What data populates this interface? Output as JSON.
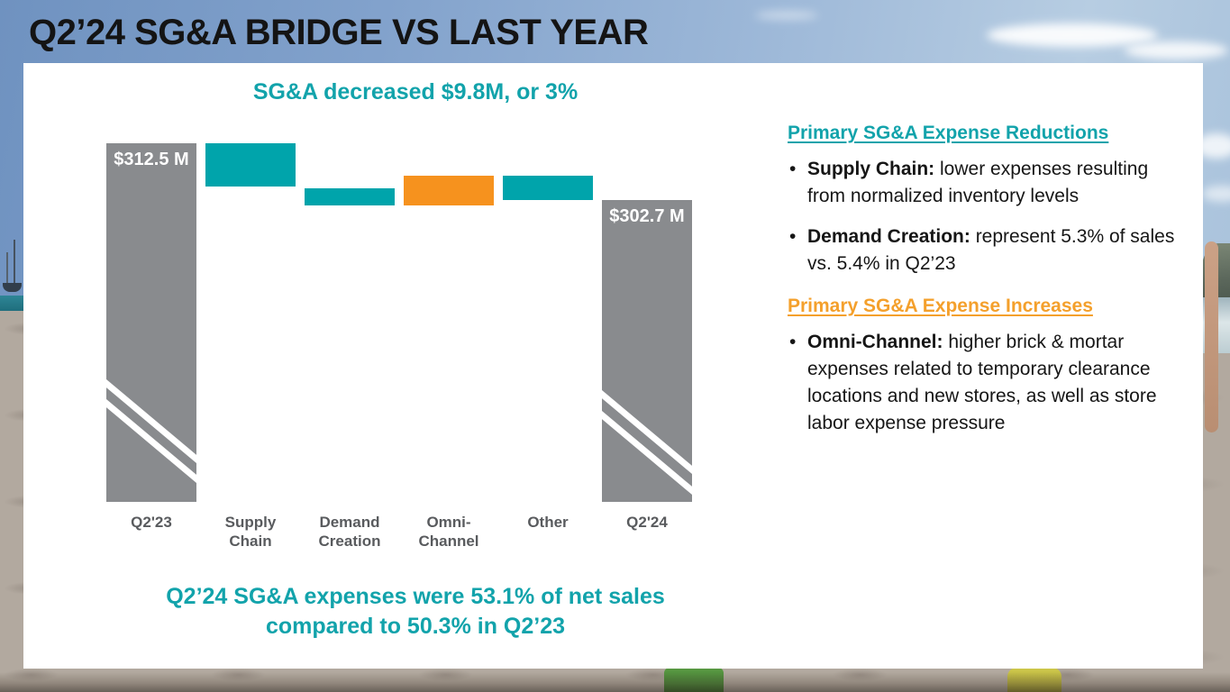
{
  "slide": {
    "title": "Q2’24 SG&A BRIDGE VS LAST YEAR"
  },
  "chart": {
    "subtitle": "SG&A decreased $9.8M, or 3%",
    "footnote_line1": "Q2’24 SG&A expenses were 53.1% of net sales",
    "footnote_line2": "compared to 50.3% in Q2’23"
  },
  "chart_data": {
    "type": "bar",
    "subtype": "waterfall-bridge",
    "title": "SG&A decreased $9.8M, or 3%",
    "unit": "$M",
    "grid": false,
    "legend": false,
    "xlabel": "",
    "ylabel": "",
    "categories": [
      "Q2'23",
      "Supply Chain",
      "Demand Creation",
      "Omni-Channel",
      "Other",
      "Q2'24"
    ],
    "bars": [
      {
        "label": "Q2'23",
        "label_line1": "Q2'23",
        "label_line2": "",
        "role": "start-total",
        "value": 312.5,
        "value_label": "$312.5 M",
        "color": "#898B8E",
        "axis_break": true
      },
      {
        "label": "Supply Chain",
        "label_line1": "Supply",
        "label_line2": "Chain",
        "role": "decrease",
        "delta": -7.6,
        "value_label": "",
        "color": "#00A4AB"
      },
      {
        "label": "Demand Creation",
        "label_line1": "Demand",
        "label_line2": "Creation",
        "role": "decrease",
        "delta": -3.1,
        "value_label": "",
        "color": "#00A4AB"
      },
      {
        "label": "Omni-Channel",
        "label_line1": "Omni-",
        "label_line2": "Channel",
        "role": "increase",
        "delta": 5.1,
        "value_label": "",
        "color": "#F6921E"
      },
      {
        "label": "Other",
        "label_line1": "Other",
        "label_line2": "",
        "role": "decrease",
        "delta": -4.2,
        "value_label": "",
        "color": "#00A4AB"
      },
      {
        "label": "Q2'24",
        "label_line1": "Q2'24",
        "label_line2": "",
        "role": "end-total",
        "value": 302.7,
        "value_label": "$302.7 M",
        "color": "#898B8E",
        "axis_break": true
      }
    ],
    "total_change": {
      "amount": -9.8,
      "amount_label": "$9.8M",
      "percent_label": "3%"
    },
    "note": "Only start/end totals are labeled on the chart; intermediate deltas estimated from bar geometry so that 312.5 - 7.6 - 3.1 + 5.1 - 4.2 = 302.7"
  },
  "panel": {
    "bullet_marker": "•",
    "reductions_heading": "Primary SG&A Expense Reductions",
    "reduction_bullets": [
      {
        "lead": "Supply Chain:",
        "text": " lower expenses resulting from normalized inventory levels"
      },
      {
        "lead": "Demand Creation:",
        "text": " represent 5.3% of sales vs. 5.4% in Q2’23"
      }
    ],
    "increases_heading": "Primary SG&A Expense Increases",
    "increase_bullets": [
      {
        "lead": "Omni-Channel:",
        "text": " higher brick & mortar expenses related to temporary clearance locations and new stores, as well as store labor expense pressure"
      }
    ]
  },
  "colors": {
    "teal": "#00A4AB",
    "teal_text": "#12A3AB",
    "orange": "#F6921E",
    "orange_text": "#F4A02C",
    "bar_gray": "#898B8E",
    "axis_label_gray": "#595B5E",
    "title_black": "#141414"
  }
}
